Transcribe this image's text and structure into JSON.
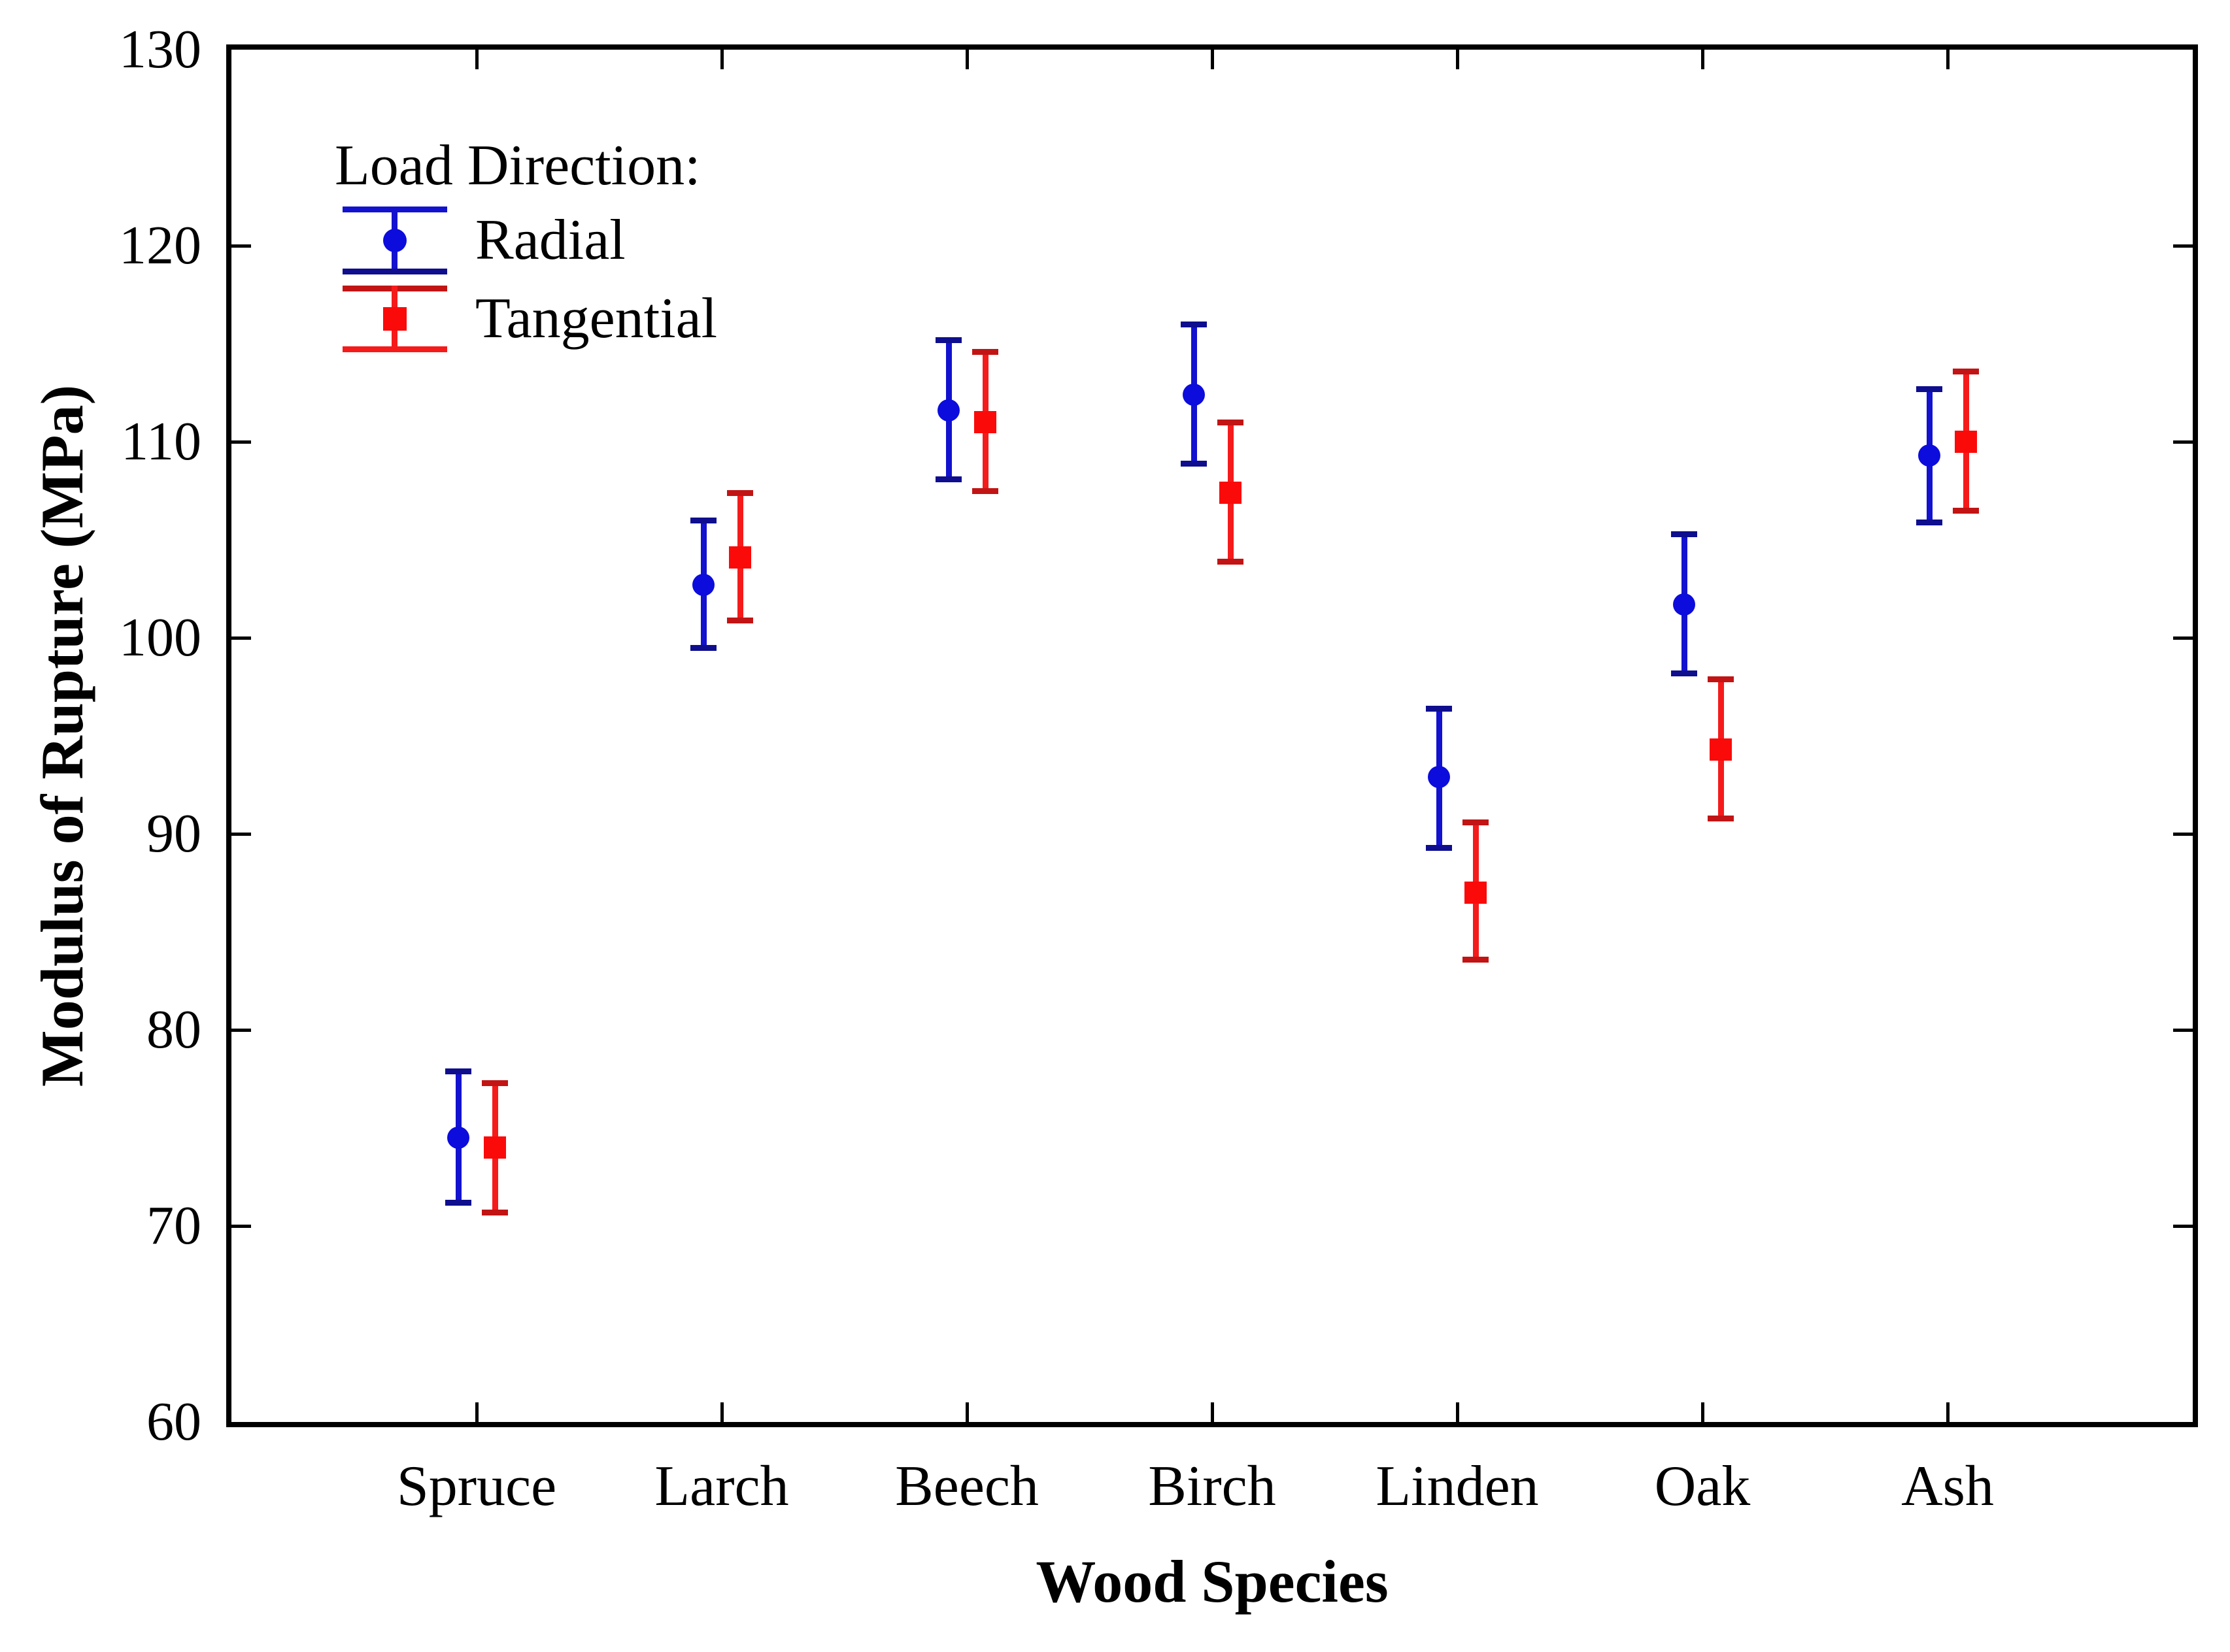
{
  "chart_data": {
    "type": "scatter",
    "title": "",
    "xlabel": "Wood Species",
    "ylabel": "Modulus of Rupture (MPa)",
    "ylim": [
      60,
      130
    ],
    "yticks": [
      60,
      70,
      80,
      90,
      100,
      110,
      120,
      130
    ],
    "grid": "off",
    "frame": "box with inward ticks on all four sides",
    "categories": [
      "Spruce",
      "Larch",
      "Beech",
      "Birch",
      "Linden",
      "Oak",
      "Ash"
    ],
    "legend": {
      "title": "Load Direction:",
      "position": "upper-left inside plot",
      "entries": [
        "Radial",
        "Tangential"
      ]
    },
    "series": [
      {
        "name": "Radial",
        "marker": "circle",
        "color": "#1212cf",
        "cap_color": "#0e0e8e",
        "marker_color": "#0c0cdd",
        "means": [
          74.5,
          102.7,
          111.6,
          112.4,
          92.9,
          101.7,
          109.3
        ],
        "upper": [
          77.9,
          106.0,
          115.2,
          116.0,
          96.4,
          105.3,
          112.7
        ],
        "lower": [
          71.2,
          99.5,
          108.1,
          108.9,
          89.3,
          98.2,
          105.9
        ]
      },
      {
        "name": "Tangential",
        "marker": "square",
        "color": "#f51b1b",
        "cap_color": "#c21414",
        "marker_color": "#fb0a0a",
        "means": [
          74.0,
          104.1,
          111.0,
          107.4,
          87.0,
          94.3,
          110.0
        ],
        "upper": [
          77.3,
          107.4,
          114.6,
          111.0,
          90.6,
          97.9,
          113.6
        ],
        "lower": [
          70.7,
          100.9,
          107.5,
          103.9,
          83.6,
          90.8,
          106.5
        ]
      }
    ]
  }
}
